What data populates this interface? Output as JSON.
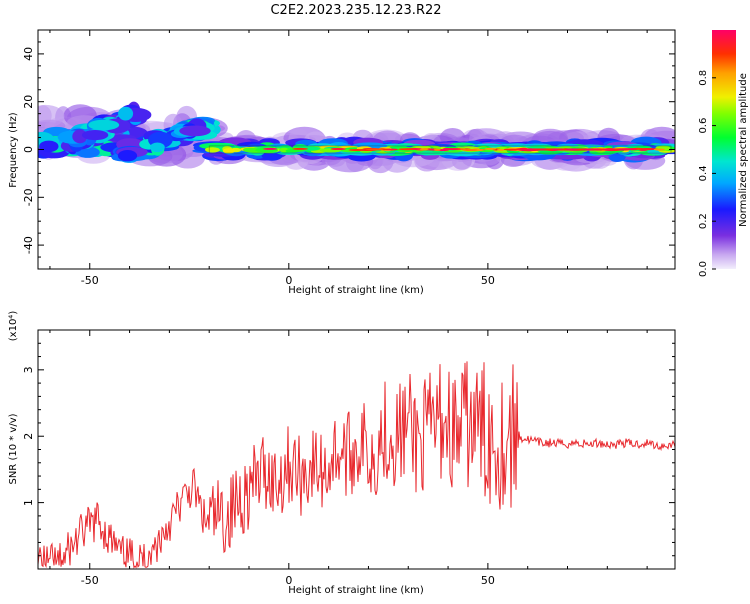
{
  "title": "C2E2.2023.235.12.23.R22",
  "colors": {
    "snr_line": "#e8282d",
    "axis": "#000000",
    "colormap": [
      "#e8e0f8",
      "#8a2be2",
      "#1a1aff",
      "#00d0f0",
      "#00e070",
      "#20ff00",
      "#f0e000",
      "#ffa000",
      "#ff3000",
      "#ff0060"
    ]
  },
  "chart_data": [
    {
      "type": "heatmap",
      "panel": "spectrogram",
      "xlabel": "Height of straight line (km)",
      "ylabel": "Frequency (Hz)",
      "xlim": [
        -63,
        97
      ],
      "ylim": [
        -50,
        50
      ],
      "xticks": [
        -50,
        0,
        50
      ],
      "xtick_labels": [
        "-50",
        "0",
        "50"
      ],
      "yticks": [
        -40,
        -20,
        0,
        20,
        40
      ],
      "ytick_labels": [
        "-40",
        "-20",
        "0",
        "20",
        "40"
      ],
      "colorbar": {
        "label": "Normalized spectral amplitude",
        "range": [
          0,
          1
        ],
        "ticks": [
          0.0,
          0.2,
          0.4,
          0.6,
          0.8
        ],
        "tick_labels": [
          "0.0",
          "0.2",
          "0.4",
          "0.6",
          "0.8"
        ]
      },
      "features": [
        {
          "name": "main-band",
          "x_range": [
            -20,
            96
          ],
          "freq_center": 0,
          "freq_halfwidth": 3,
          "amplitude": 0.85
        },
        {
          "name": "rising-branch-upper",
          "x_start": -55,
          "x_end": -38,
          "freq_start": 3,
          "freq_end": 15,
          "amplitude": 0.35
        },
        {
          "name": "rising-branch-lower",
          "x_start": -40,
          "x_end": -20,
          "freq_start": -2,
          "freq_end": 10,
          "amplitude": 0.35
        },
        {
          "name": "left-cluster",
          "x_range": [
            -63,
            -40
          ],
          "freq_center": 3,
          "freq_halfwidth": 5,
          "amplitude": 0.45
        }
      ]
    },
    {
      "type": "line",
      "panel": "snr",
      "xlabel": "Height of straight line (km)",
      "ylabel": "SNR (10 * v/v)",
      "y_multiplier": "(x10⁴)",
      "xlim": [
        -63,
        97
      ],
      "ylim": [
        0,
        3.6
      ],
      "xticks": [
        -50,
        0,
        50
      ],
      "xtick_labels": [
        "-50",
        "0",
        "50"
      ],
      "yticks": [
        1,
        2,
        3
      ],
      "ytick_labels": [
        "1",
        "2",
        "3"
      ],
      "series": [
        {
          "x": [
            -63,
            -60,
            -57,
            -54,
            -51,
            -48,
            -45,
            -42,
            -39,
            -36,
            -33,
            -30,
            -27,
            -24,
            -21,
            -18,
            -15,
            -12,
            -9,
            -6,
            -3,
            0,
            3,
            6,
            9,
            12,
            15,
            18,
            21,
            24,
            27,
            30,
            33,
            36,
            39,
            42,
            45,
            48,
            51,
            54,
            57,
            60,
            63,
            66,
            69,
            72,
            75,
            78,
            81,
            84,
            87,
            90,
            93,
            96
          ],
          "y": [
            0.15,
            0.07,
            0.1,
            0.4,
            0.6,
            0.75,
            0.45,
            0.2,
            0.15,
            0.12,
            0.4,
            0.7,
            1.0,
            1.25,
            0.7,
            0.75,
            0.8,
            1.1,
            1.25,
            1.5,
            1.3,
            1.6,
            1.4,
            1.55,
            1.45,
            1.8,
            1.7,
            1.9,
            1.7,
            2.1,
            2.0,
            2.15,
            1.9,
            2.1,
            2.3,
            2.0,
            2.2,
            2.1,
            2.0,
            1.95,
            2.0,
            1.95,
            1.9,
            1.9,
            1.88,
            1.9,
            1.88,
            1.9,
            1.87,
            1.9,
            1.88,
            1.9,
            1.85,
            1.88
          ]
        }
      ]
    }
  ]
}
